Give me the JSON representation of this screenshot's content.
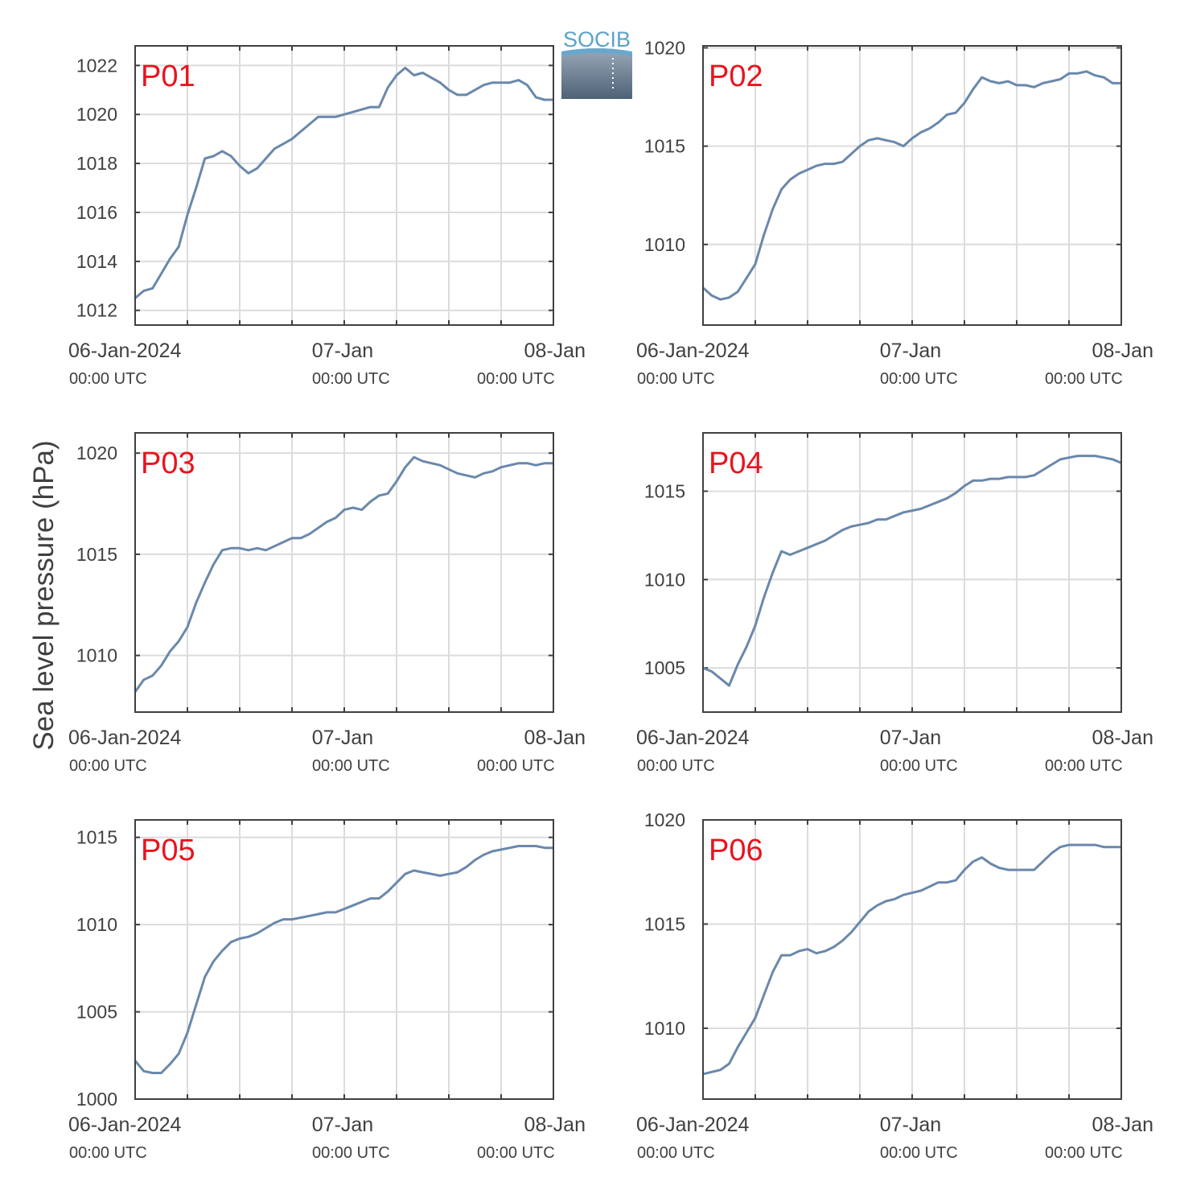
{
  "figure": {
    "ylabel": "Sea level pressure (hPa)",
    "logo_text": "SOCIB"
  },
  "style": {
    "line_color": "#6a88ab",
    "label_color": "#e8141e",
    "axis_color": "#404040",
    "grid_color": "#dcdcdc",
    "logo_color": "#5ba3cc"
  },
  "x_ticks": [
    {
      "value": 0,
      "label": "06-Jan-2024",
      "sublabel": "00:00 UTC"
    },
    {
      "value": 24,
      "label": "07-Jan",
      "sublabel": "00:00 UTC"
    },
    {
      "value": 48,
      "label": "08-Jan",
      "sublabel": "00:00 UTC"
    }
  ],
  "chart_data": [
    {
      "type": "line",
      "panel_label": "P01",
      "x_unit": "hours since 06-Jan-2024 00:00 UTC",
      "xlim": [
        0,
        48
      ],
      "ylim": [
        1011.4,
        1022.8
      ],
      "yticks": [
        1012,
        1014,
        1016,
        1018,
        1020,
        1022
      ],
      "x": [
        0,
        1,
        2,
        3,
        4,
        5,
        6,
        7,
        8,
        9,
        10,
        11,
        12,
        13,
        14,
        15,
        16,
        17,
        18,
        19,
        20,
        21,
        22,
        23,
        24,
        25,
        26,
        27,
        28,
        29,
        30,
        31,
        32,
        33,
        34,
        35,
        36,
        37,
        38,
        39,
        40,
        41,
        42,
        43,
        44,
        45,
        46,
        47,
        48
      ],
      "y": [
        1012.5,
        1012.8,
        1012.9,
        1013.5,
        1014.1,
        1014.6,
        1015.9,
        1017.0,
        1018.2,
        1018.3,
        1018.5,
        1018.3,
        1017.9,
        1017.6,
        1017.8,
        1018.2,
        1018.6,
        1018.8,
        1019.0,
        1019.3,
        1019.6,
        1019.9,
        1019.9,
        1019.9,
        1020.0,
        1020.1,
        1020.2,
        1020.3,
        1020.3,
        1021.1,
        1021.6,
        1021.9,
        1021.6,
        1021.7,
        1021.5,
        1021.3,
        1021.0,
        1020.8,
        1020.8,
        1021.0,
        1021.2,
        1021.3,
        1021.3,
        1021.3,
        1021.4,
        1021.2,
        1020.7,
        1020.6,
        1020.6
      ]
    },
    {
      "type": "line",
      "panel_label": "P02",
      "x_unit": "hours since 06-Jan-2024 00:00 UTC",
      "xlim": [
        0,
        48
      ],
      "ylim": [
        1005.9,
        1020.1
      ],
      "yticks": [
        1010,
        1015,
        1020
      ],
      "x": [
        0,
        1,
        2,
        3,
        4,
        5,
        6,
        7,
        8,
        9,
        10,
        11,
        12,
        13,
        14,
        15,
        16,
        17,
        18,
        19,
        20,
        21,
        22,
        23,
        24,
        25,
        26,
        27,
        28,
        29,
        30,
        31,
        32,
        33,
        34,
        35,
        36,
        37,
        38,
        39,
        40,
        41,
        42,
        43,
        44,
        45,
        46,
        47,
        48
      ],
      "y": [
        1007.8,
        1007.4,
        1007.2,
        1007.3,
        1007.6,
        1008.3,
        1009.0,
        1010.5,
        1011.8,
        1012.8,
        1013.3,
        1013.6,
        1013.8,
        1014.0,
        1014.1,
        1014.1,
        1014.2,
        1014.6,
        1015.0,
        1015.3,
        1015.4,
        1015.3,
        1015.2,
        1015.0,
        1015.4,
        1015.7,
        1015.9,
        1016.2,
        1016.6,
        1016.7,
        1017.2,
        1017.9,
        1018.5,
        1018.3,
        1018.2,
        1018.3,
        1018.1,
        1018.1,
        1018.0,
        1018.2,
        1018.3,
        1018.4,
        1018.7,
        1018.7,
        1018.8,
        1018.6,
        1018.5,
        1018.2,
        1018.2
      ]
    },
    {
      "type": "line",
      "panel_label": "P03",
      "x_unit": "hours since 06-Jan-2024 00:00 UTC",
      "xlim": [
        0,
        48
      ],
      "ylim": [
        1007.2,
        1021.0
      ],
      "yticks": [
        1010,
        1015,
        1020
      ],
      "x": [
        0,
        1,
        2,
        3,
        4,
        5,
        6,
        7,
        8,
        9,
        10,
        11,
        12,
        13,
        14,
        15,
        16,
        17,
        18,
        19,
        20,
        21,
        22,
        23,
        24,
        25,
        26,
        27,
        28,
        29,
        30,
        31,
        32,
        33,
        34,
        35,
        36,
        37,
        38,
        39,
        40,
        41,
        42,
        43,
        44,
        45,
        46,
        47,
        48
      ],
      "y": [
        1008.2,
        1008.8,
        1009.0,
        1009.5,
        1010.2,
        1010.7,
        1011.4,
        1012.6,
        1013.6,
        1014.5,
        1015.2,
        1015.3,
        1015.3,
        1015.2,
        1015.3,
        1015.2,
        1015.4,
        1015.6,
        1015.8,
        1015.8,
        1016.0,
        1016.3,
        1016.6,
        1016.8,
        1017.2,
        1017.3,
        1017.2,
        1017.6,
        1017.9,
        1018.0,
        1018.6,
        1019.3,
        1019.8,
        1019.6,
        1019.5,
        1019.4,
        1019.2,
        1019.0,
        1018.9,
        1018.8,
        1019.0,
        1019.1,
        1019.3,
        1019.4,
        1019.5,
        1019.5,
        1019.4,
        1019.5,
        1019.5
      ]
    },
    {
      "type": "line",
      "panel_label": "P04",
      "x_unit": "hours since 06-Jan-2024 00:00 UTC",
      "xlim": [
        0,
        48
      ],
      "ylim": [
        1002.5,
        1018.3
      ],
      "yticks": [
        1005,
        1010,
        1015
      ],
      "x": [
        0,
        1,
        2,
        3,
        4,
        5,
        6,
        7,
        8,
        9,
        10,
        11,
        12,
        13,
        14,
        15,
        16,
        17,
        18,
        19,
        20,
        21,
        22,
        23,
        24,
        25,
        26,
        27,
        28,
        29,
        30,
        31,
        32,
        33,
        34,
        35,
        36,
        37,
        38,
        39,
        40,
        41,
        42,
        43,
        44,
        45,
        46,
        47,
        48
      ],
      "y": [
        1005.0,
        1004.8,
        1004.4,
        1004.0,
        1005.2,
        1006.2,
        1007.4,
        1009.0,
        1010.4,
        1011.6,
        1011.4,
        1011.6,
        1011.8,
        1012.0,
        1012.2,
        1012.5,
        1012.8,
        1013.0,
        1013.1,
        1013.2,
        1013.4,
        1013.4,
        1013.6,
        1013.8,
        1013.9,
        1014.0,
        1014.2,
        1014.4,
        1014.6,
        1014.9,
        1015.3,
        1015.6,
        1015.6,
        1015.7,
        1015.7,
        1015.8,
        1015.8,
        1015.8,
        1015.9,
        1016.2,
        1016.5,
        1016.8,
        1016.9,
        1017.0,
        1017.0,
        1017.0,
        1016.9,
        1016.8,
        1016.6
      ]
    },
    {
      "type": "line",
      "panel_label": "P05",
      "x_unit": "hours since 06-Jan-2024 00:00 UTC",
      "xlim": [
        0,
        48
      ],
      "ylim": [
        1000,
        1016.0
      ],
      "yticks": [
        1000,
        1005,
        1010,
        1015
      ],
      "x": [
        0,
        1,
        2,
        3,
        4,
        5,
        6,
        7,
        8,
        9,
        10,
        11,
        12,
        13,
        14,
        15,
        16,
        17,
        18,
        19,
        20,
        21,
        22,
        23,
        24,
        25,
        26,
        27,
        28,
        29,
        30,
        31,
        32,
        33,
        34,
        35,
        36,
        37,
        38,
        39,
        40,
        41,
        42,
        43,
        44,
        45,
        46,
        47,
        48
      ],
      "y": [
        1002.2,
        1001.6,
        1001.5,
        1001.5,
        1002.0,
        1002.6,
        1003.8,
        1005.4,
        1007.0,
        1007.9,
        1008.5,
        1009.0,
        1009.2,
        1009.3,
        1009.5,
        1009.8,
        1010.1,
        1010.3,
        1010.3,
        1010.4,
        1010.5,
        1010.6,
        1010.7,
        1010.7,
        1010.9,
        1011.1,
        1011.3,
        1011.5,
        1011.5,
        1011.9,
        1012.4,
        1012.9,
        1013.1,
        1013.0,
        1012.9,
        1012.8,
        1012.9,
        1013.0,
        1013.3,
        1013.7,
        1014.0,
        1014.2,
        1014.3,
        1014.4,
        1014.5,
        1014.5,
        1014.5,
        1014.4,
        1014.4
      ]
    },
    {
      "type": "line",
      "panel_label": "P06",
      "x_unit": "hours since 06-Jan-2024 00:00 UTC",
      "xlim": [
        0,
        48
      ],
      "ylim": [
        1006.6,
        1020.0
      ],
      "yticks": [
        1010,
        1015,
        1020
      ],
      "x": [
        0,
        1,
        2,
        3,
        4,
        5,
        6,
        7,
        8,
        9,
        10,
        11,
        12,
        13,
        14,
        15,
        16,
        17,
        18,
        19,
        20,
        21,
        22,
        23,
        24,
        25,
        26,
        27,
        28,
        29,
        30,
        31,
        32,
        33,
        34,
        35,
        36,
        37,
        38,
        39,
        40,
        41,
        42,
        43,
        44,
        45,
        46,
        47,
        48
      ],
      "y": [
        1007.8,
        1007.9,
        1008.0,
        1008.3,
        1009.1,
        1009.8,
        1010.5,
        1011.6,
        1012.7,
        1013.5,
        1013.5,
        1013.7,
        1013.8,
        1013.6,
        1013.7,
        1013.9,
        1014.2,
        1014.6,
        1015.1,
        1015.6,
        1015.9,
        1016.1,
        1016.2,
        1016.4,
        1016.5,
        1016.6,
        1016.8,
        1017.0,
        1017.0,
        1017.1,
        1017.6,
        1018.0,
        1018.2,
        1017.9,
        1017.7,
        1017.6,
        1017.6,
        1017.6,
        1017.6,
        1018.0,
        1018.4,
        1018.7,
        1018.8,
        1018.8,
        1018.8,
        1018.8,
        1018.7,
        1018.7,
        1018.7
      ]
    }
  ]
}
